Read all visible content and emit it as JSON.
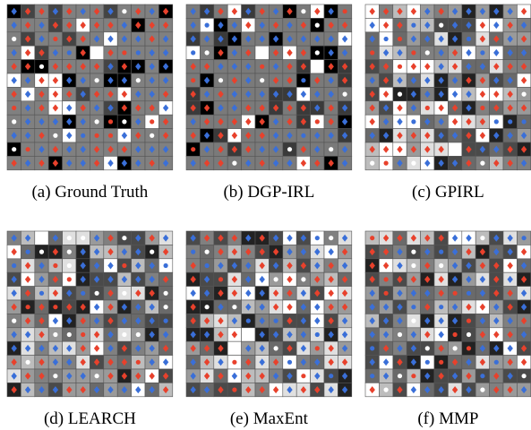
{
  "panels": [
    {
      "caption": "(a) Ground Truth"
    },
    {
      "caption": "(b) DGP-IRL"
    },
    {
      "caption": "(c) GPIRL"
    },
    {
      "caption": "(d) LEARCH"
    },
    {
      "caption": "(e) MaxEnt"
    },
    {
      "caption": "(f) MMP"
    }
  ]
}
